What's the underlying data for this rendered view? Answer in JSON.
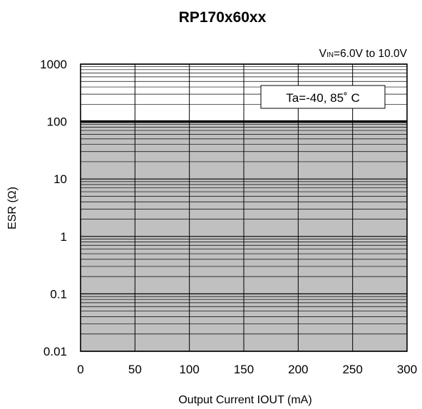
{
  "chart_data": {
    "type": "area",
    "title": "RP170x60xx",
    "xlabel": "Output  Current IOUT (mA)",
    "ylabel": "ESR (Ω)",
    "xlim": [
      0,
      300
    ],
    "ylim": [
      0.01,
      1000
    ],
    "y_scale": "log",
    "grid": true,
    "x_ticks": [
      "0",
      "50",
      "100",
      "150",
      "200",
      "250",
      "300"
    ],
    "y_ticks": [
      "0.01",
      "0.1",
      "1",
      "10",
      "100",
      "1000"
    ],
    "annotations": {
      "vin_prefix": "V",
      "vin_sub": "IN",
      "vin_rest": "=6.0V to 10.0V",
      "ta_label": "Ta=-40, 85˚ C"
    },
    "series": [
      {
        "x": [
          0,
          300
        ],
        "upper": [
          100,
          100
        ],
        "lower": [
          0.01,
          0.01
        ]
      }
    ],
    "colors": {
      "region_fill": "#c0c0c0",
      "grid": "#000000",
      "background": "#ffffff"
    }
  }
}
